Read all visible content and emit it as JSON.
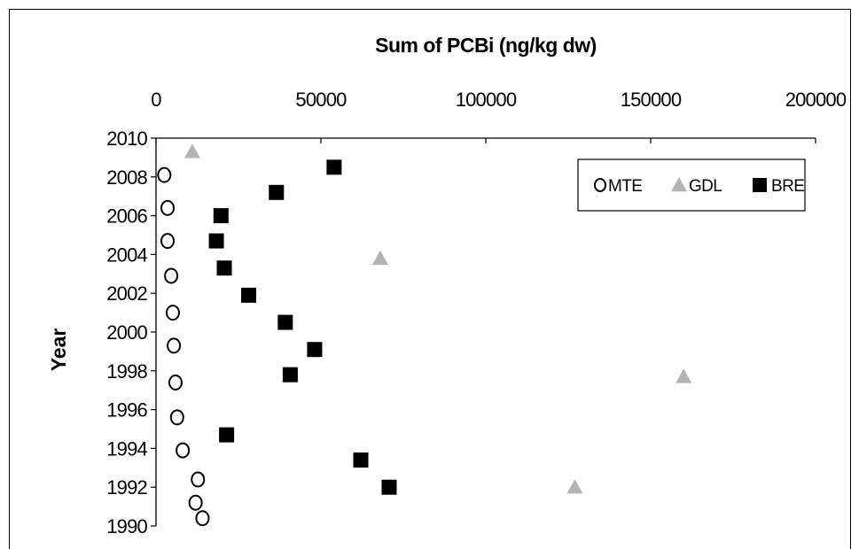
{
  "chart_data": {
    "type": "scatter",
    "title": "Sum of PCBi (ng/kg dw)",
    "ylabel": "Year",
    "xlim": [
      0,
      200000
    ],
    "ylim": [
      1990,
      2010
    ],
    "x_ticks": [
      0,
      50000,
      100000,
      150000,
      200000
    ],
    "x_tick_labels": [
      "0",
      "50000",
      "100000",
      "150000",
      "200000"
    ],
    "y_ticks": [
      1990,
      1992,
      1994,
      1996,
      1998,
      2000,
      2002,
      2004,
      2006,
      2008,
      2010
    ],
    "y_tick_labels": [
      "1990",
      "1992",
      "1994",
      "1996",
      "1998",
      "2000",
      "2002",
      "2004",
      "2006",
      "2008",
      "2010"
    ],
    "x_axis_position": "top",
    "y_axis_reversed": false,
    "grid": false,
    "legend_position": "top-right",
    "series": [
      {
        "name": "MTE",
        "marker": "circle-open",
        "color": "#000000",
        "points": [
          {
            "x": 2500,
            "y": 2008.1
          },
          {
            "x": 3500,
            "y": 2006.4
          },
          {
            "x": 3500,
            "y": 2004.7
          },
          {
            "x": 4600,
            "y": 2002.9
          },
          {
            "x": 5100,
            "y": 2001.0
          },
          {
            "x": 5400,
            "y": 1999.3
          },
          {
            "x": 5900,
            "y": 1997.4
          },
          {
            "x": 6400,
            "y": 1995.6
          },
          {
            "x": 8100,
            "y": 1993.9
          },
          {
            "x": 12700,
            "y": 1992.4
          },
          {
            "x": 12000,
            "y": 1991.2
          },
          {
            "x": 14100,
            "y": 1990.4
          }
        ]
      },
      {
        "name": "GDL",
        "marker": "triangle",
        "color": "#b3b3b3",
        "points": [
          {
            "x": 11000,
            "y": 2009.3
          },
          {
            "x": 68000,
            "y": 2003.8
          },
          {
            "x": 160000,
            "y": 1997.7
          },
          {
            "x": 127000,
            "y": 1992.0
          }
        ]
      },
      {
        "name": "BRE",
        "marker": "square",
        "color": "#000000",
        "points": [
          {
            "x": 54000,
            "y": 2008.5
          },
          {
            "x": 36500,
            "y": 2007.2
          },
          {
            "x": 19700,
            "y": 2006.0
          },
          {
            "x": 18300,
            "y": 2004.7
          },
          {
            "x": 20700,
            "y": 2003.3
          },
          {
            "x": 28100,
            "y": 2001.9
          },
          {
            "x": 39200,
            "y": 2000.5
          },
          {
            "x": 48100,
            "y": 1999.1
          },
          {
            "x": 40700,
            "y": 1997.8
          },
          {
            "x": 21400,
            "y": 1994.7
          },
          {
            "x": 62100,
            "y": 1993.4
          },
          {
            "x": 70700,
            "y": 1992.0
          }
        ]
      }
    ]
  }
}
